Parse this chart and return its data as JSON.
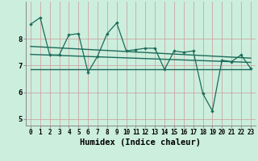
{
  "xlabel": "Humidex (Indice chaleur)",
  "bg_color": "#cceedd",
  "grid_color_v": "#b8ddd0",
  "grid_color_h": "#e8b8b8",
  "line_color": "#1a6b5a",
  "series_main": [
    8.55,
    8.8,
    7.4,
    7.4,
    8.15,
    8.2,
    6.75,
    7.35,
    8.2,
    8.6,
    7.55,
    7.6,
    7.65,
    7.65,
    6.85,
    7.55,
    7.5,
    7.55,
    5.95,
    5.3,
    7.2,
    7.15,
    7.4,
    6.9
  ],
  "trend1_y": [
    7.72,
    7.28
  ],
  "trend2_y": [
    7.42,
    7.12
  ],
  "trend3_y": [
    6.85,
    6.85
  ],
  "ylim_min": 4.75,
  "ylim_max": 9.4,
  "yticks": [
    5,
    6,
    7,
    8
  ],
  "n_points": 24
}
